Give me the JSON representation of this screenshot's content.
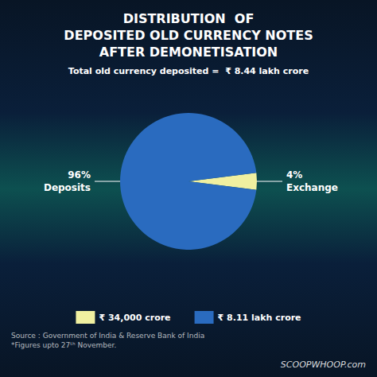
{
  "chart_data": {
    "type": "pie",
    "title": "DISTRIBUTION  OF\nDEPOSITED OLD CURRENCY NOTES\nAFTER DEMONETISATION",
    "subtitle": "Total old currency deposited =  ₹ 8.44 lakh crore",
    "categories": [
      "Exchange",
      "Deposits"
    ],
    "values": [
      4,
      96
    ],
    "value_labels": [
      "4%",
      "96%"
    ],
    "colors": [
      "#f0f0a0",
      "#2a6bbf"
    ],
    "legend": "bottom",
    "legend_labels": [
      "₹ 34,000 crore",
      "₹ 8.11 lakh crore"
    ],
    "annotations": [
      "Source : Government of India & Reserve Bank of India\n*Figures upto 27ᵗʰ November.",
      "SCOOPWHOOP.com"
    ]
  }
}
